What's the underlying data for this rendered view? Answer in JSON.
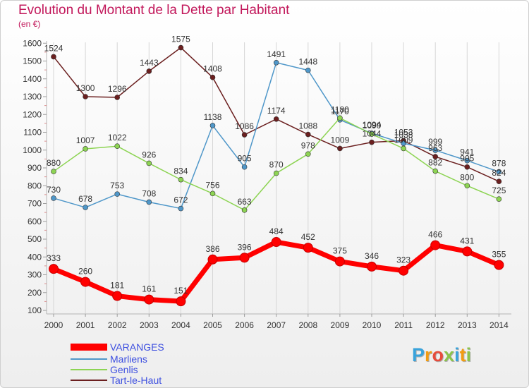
{
  "chart_data": {
    "type": "line",
    "title": "Evolution du Montant de la Dette par Habitant",
    "subtitle": "(en €)",
    "x": [
      "2000",
      "2001",
      "2002",
      "2003",
      "2004",
      "2005",
      "2006",
      "2007",
      "2008",
      "2009",
      "2010",
      "2011",
      "2012",
      "2013",
      "2014"
    ],
    "ylim": [
      100,
      1600
    ],
    "yticks": [
      100,
      200,
      300,
      400,
      500,
      600,
      700,
      800,
      900,
      1000,
      1100,
      1200,
      1300,
      1400,
      1500,
      1600
    ],
    "grid": "vertical",
    "legend_position": "bottom-left",
    "series": [
      {
        "name": "VARANGES",
        "color": "#ff0000",
        "values": [
          333,
          260,
          181,
          161,
          151,
          386,
          396,
          484,
          452,
          375,
          346,
          323,
          466,
          431,
          355
        ]
      },
      {
        "name": "Marliens",
        "color": "#4f97c9",
        "values": [
          730,
          678,
          753,
          708,
          672,
          1138,
          905,
          1491,
          1448,
          1170,
          1094,
          1038,
          999,
          941,
          878
        ]
      },
      {
        "name": "Genlis",
        "color": "#8dd453",
        "values": [
          880,
          1007,
          1022,
          926,
          834,
          756,
          663,
          870,
          978,
          1180,
          1090,
          1009,
          882,
          800,
          725
        ]
      },
      {
        "name": "Tart-le-Haut",
        "color": "#6b1f1f",
        "values": [
          1524,
          1300,
          1296,
          1443,
          1575,
          1408,
          1086,
          1174,
          1088,
          1009,
          1044,
          1053,
          963,
          905,
          824
        ]
      }
    ]
  },
  "legend": {
    "items": [
      "VARANGES",
      "Marliens",
      "Genlis",
      "Tart-le-Haut"
    ]
  },
  "logo": {
    "letters": [
      "P",
      "r",
      "o",
      "x",
      "i",
      "t",
      "i"
    ],
    "colors": [
      "#3aa3db",
      "#f39c12",
      "#e74c3c",
      "#8bc34a",
      "#3aa3db",
      "#f39c12",
      "#8bc34a"
    ]
  }
}
